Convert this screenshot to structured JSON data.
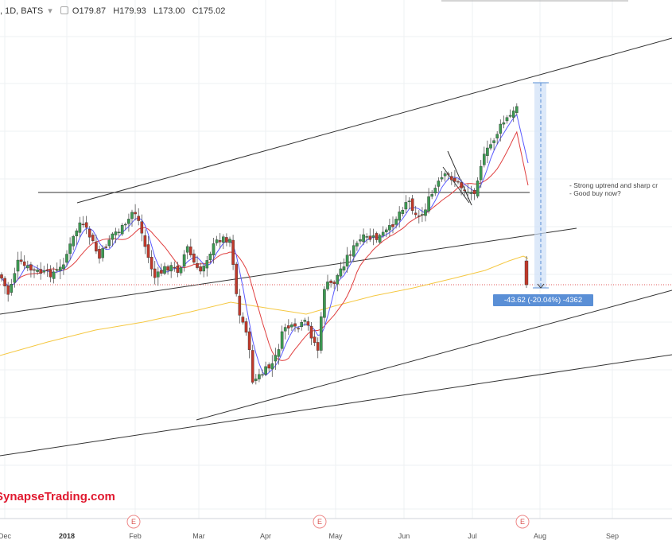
{
  "header": {
    "symbol": ", 1D, BATS",
    "open_label": "O",
    "open": "179.87",
    "high_label": "H",
    "high": "179.93",
    "low_label": "L",
    "low": "173.00",
    "close_label": "C",
    "close": "175.02"
  },
  "watermark": "SynapseTrading.com",
  "annotation": {
    "line1": "- Strong uptrend and sharp cr",
    "line2": "- Good buy now?"
  },
  "measure_label": "-43.62 (-20.04%) -4362",
  "earnings_marker": "E",
  "colors": {
    "up": "#3c9a52",
    "down": "#c0392b",
    "ma_fast": "#5a5aff",
    "ma_mid": "#e04040",
    "ma_slow": "#f5c842",
    "trendline": "#333333",
    "measure": "#5a8fd6",
    "brand": "#e0192f"
  },
  "chart_data": {
    "type": "candlestick",
    "x_axis": {
      "labels": [
        "Dec",
        "2018",
        "Feb",
        "Mar",
        "Apr",
        "May",
        "Jun",
        "Jul",
        "Aug",
        "Sep"
      ],
      "bold_labels": [
        "2018"
      ]
    },
    "earnings_events": [
      "Feb",
      "Apr",
      "Jul"
    ],
    "last_bar": {
      "open": 179.87,
      "high": 179.93,
      "low": 173.0,
      "close": 175.02
    },
    "moving_averages": [
      "fast (blue)",
      "medium (red)",
      "slow (yellow)"
    ]
  }
}
